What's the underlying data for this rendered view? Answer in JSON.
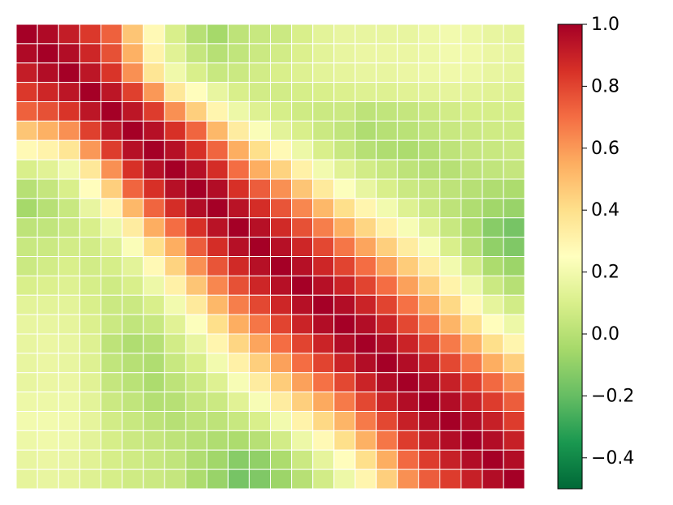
{
  "chart_data": {
    "type": "heatmap",
    "title": "",
    "xlabel": "",
    "ylabel": "",
    "colormap": "RdYlGn_r",
    "vmin": -0.5,
    "vmax": 1.0,
    "colorbar_ticks": [
      {
        "value": 1.0,
        "label": "1.0"
      },
      {
        "value": 0.8,
        "label": "0.8"
      },
      {
        "value": 0.6,
        "label": "0.6"
      },
      {
        "value": 0.4,
        "label": "0.4"
      },
      {
        "value": 0.2,
        "label": "0.2"
      },
      {
        "value": 0.0,
        "label": "0.0"
      },
      {
        "value": -0.2,
        "label": "−0.2"
      },
      {
        "value": -0.4,
        "label": "−0.4"
      }
    ],
    "rows": 24,
    "cols": 24,
    "matrix": [
      [
        1.0,
        0.97,
        0.91,
        0.83,
        0.73,
        0.48,
        0.28,
        0.1,
        0.0,
        -0.05,
        0.02,
        0.05,
        0.06,
        0.1,
        0.14,
        0.16,
        0.16,
        0.16,
        0.16,
        0.18,
        0.2,
        0.18,
        0.16,
        0.15
      ],
      [
        0.97,
        1.0,
        0.96,
        0.88,
        0.77,
        0.54,
        0.31,
        0.13,
        0.04,
        0.0,
        0.03,
        0.06,
        0.08,
        0.11,
        0.14,
        0.16,
        0.17,
        0.17,
        0.17,
        0.18,
        0.2,
        0.19,
        0.17,
        0.16
      ],
      [
        0.91,
        0.96,
        1.0,
        0.93,
        0.84,
        0.62,
        0.37,
        0.19,
        0.1,
        0.05,
        0.06,
        0.08,
        0.1,
        0.12,
        0.14,
        0.15,
        0.16,
        0.16,
        0.17,
        0.18,
        0.19,
        0.18,
        0.16,
        0.15
      ],
      [
        0.83,
        0.88,
        0.93,
        1.0,
        0.93,
        0.81,
        0.6,
        0.36,
        0.26,
        0.16,
        0.1,
        0.08,
        0.08,
        0.09,
        0.1,
        0.11,
        0.12,
        0.12,
        0.13,
        0.14,
        0.15,
        0.14,
        0.13,
        0.12
      ],
      [
        0.73,
        0.77,
        0.84,
        0.93,
        1.0,
        0.93,
        0.82,
        0.62,
        0.45,
        0.3,
        0.18,
        0.12,
        0.09,
        0.07,
        0.06,
        0.06,
        0.02,
        0.03,
        0.04,
        0.06,
        0.08,
        0.09,
        0.09,
        0.09
      ],
      [
        0.48,
        0.54,
        0.62,
        0.81,
        0.93,
        1.0,
        0.95,
        0.85,
        0.72,
        0.52,
        0.34,
        0.23,
        0.14,
        0.1,
        0.06,
        0.03,
        -0.02,
        0.0,
        0.01,
        0.03,
        0.05,
        0.06,
        0.07,
        0.07
      ],
      [
        0.28,
        0.31,
        0.37,
        0.6,
        0.82,
        0.95,
        1.0,
        0.95,
        0.85,
        0.72,
        0.55,
        0.4,
        0.28,
        0.18,
        0.1,
        0.05,
        0.0,
        -0.02,
        -0.03,
        -0.01,
        0.02,
        0.04,
        0.05,
        0.06
      ],
      [
        0.1,
        0.13,
        0.19,
        0.36,
        0.62,
        0.85,
        0.95,
        1.0,
        0.95,
        0.86,
        0.7,
        0.55,
        0.44,
        0.32,
        0.2,
        0.13,
        0.08,
        0.05,
        0.02,
        0.0,
        0.0,
        0.02,
        0.03,
        0.04
      ],
      [
        0.0,
        0.04,
        0.1,
        0.26,
        0.45,
        0.72,
        0.85,
        0.95,
        1.0,
        0.96,
        0.85,
        0.74,
        0.62,
        0.48,
        0.35,
        0.24,
        0.16,
        0.1,
        0.06,
        0.04,
        0.02,
        0.0,
        -0.02,
        -0.03
      ],
      [
        -0.05,
        0.0,
        0.05,
        0.16,
        0.3,
        0.52,
        0.72,
        0.86,
        0.96,
        1.0,
        0.94,
        0.86,
        0.76,
        0.64,
        0.52,
        0.4,
        0.3,
        0.2,
        0.12,
        0.06,
        0.02,
        -0.02,
        -0.06,
        -0.08
      ],
      [
        0.02,
        0.03,
        0.06,
        0.1,
        0.18,
        0.34,
        0.55,
        0.7,
        0.85,
        0.94,
        1.0,
        0.95,
        0.87,
        0.77,
        0.66,
        0.55,
        0.43,
        0.32,
        0.22,
        0.13,
        0.05,
        -0.03,
        -0.12,
        -0.16
      ],
      [
        0.05,
        0.06,
        0.08,
        0.08,
        0.12,
        0.23,
        0.4,
        0.55,
        0.74,
        0.86,
        0.95,
        1.0,
        0.95,
        0.88,
        0.79,
        0.68,
        0.57,
        0.45,
        0.34,
        0.22,
        0.1,
        0.0,
        -0.1,
        -0.14
      ],
      [
        0.06,
        0.08,
        0.1,
        0.08,
        0.09,
        0.14,
        0.28,
        0.44,
        0.62,
        0.76,
        0.87,
        0.95,
        1.0,
        0.95,
        0.88,
        0.8,
        0.7,
        0.58,
        0.46,
        0.34,
        0.2,
        0.08,
        -0.03,
        -0.07
      ],
      [
        0.1,
        0.11,
        0.12,
        0.09,
        0.07,
        0.1,
        0.18,
        0.32,
        0.48,
        0.64,
        0.77,
        0.88,
        0.95,
        1.0,
        0.95,
        0.89,
        0.8,
        0.7,
        0.58,
        0.45,
        0.31,
        0.18,
        0.06,
        0.0
      ],
      [
        0.14,
        0.14,
        0.14,
        0.1,
        0.06,
        0.06,
        0.1,
        0.2,
        0.35,
        0.52,
        0.66,
        0.79,
        0.88,
        0.95,
        1.0,
        0.96,
        0.89,
        0.8,
        0.69,
        0.56,
        0.42,
        0.28,
        0.15,
        0.08
      ],
      [
        0.16,
        0.16,
        0.15,
        0.11,
        0.06,
        0.03,
        0.05,
        0.13,
        0.24,
        0.4,
        0.55,
        0.68,
        0.8,
        0.89,
        0.96,
        1.0,
        0.96,
        0.89,
        0.79,
        0.67,
        0.53,
        0.4,
        0.26,
        0.18
      ],
      [
        0.16,
        0.17,
        0.16,
        0.12,
        0.02,
        -0.02,
        0.0,
        0.08,
        0.16,
        0.3,
        0.43,
        0.57,
        0.7,
        0.8,
        0.89,
        0.96,
        1.0,
        0.96,
        0.89,
        0.79,
        0.67,
        0.54,
        0.4,
        0.3
      ],
      [
        0.16,
        0.17,
        0.16,
        0.12,
        0.03,
        0.0,
        -0.02,
        0.05,
        0.1,
        0.2,
        0.32,
        0.45,
        0.58,
        0.7,
        0.8,
        0.89,
        0.96,
        1.0,
        0.96,
        0.89,
        0.79,
        0.68,
        0.55,
        0.45
      ],
      [
        0.16,
        0.17,
        0.17,
        0.13,
        0.04,
        0.01,
        -0.03,
        0.02,
        0.06,
        0.12,
        0.22,
        0.34,
        0.46,
        0.58,
        0.69,
        0.79,
        0.89,
        0.96,
        1.0,
        0.96,
        0.9,
        0.82,
        0.71,
        0.62
      ],
      [
        0.18,
        0.18,
        0.18,
        0.14,
        0.06,
        0.03,
        -0.01,
        0.0,
        0.04,
        0.06,
        0.13,
        0.22,
        0.34,
        0.45,
        0.56,
        0.67,
        0.79,
        0.89,
        0.96,
        1.0,
        0.96,
        0.9,
        0.82,
        0.74
      ],
      [
        0.2,
        0.2,
        0.19,
        0.15,
        0.08,
        0.05,
        0.02,
        0.0,
        0.02,
        0.02,
        0.05,
        0.1,
        0.2,
        0.31,
        0.42,
        0.53,
        0.67,
        0.79,
        0.9,
        0.96,
        1.0,
        0.96,
        0.9,
        0.82
      ],
      [
        0.18,
        0.19,
        0.18,
        0.14,
        0.09,
        0.06,
        0.04,
        0.02,
        0.0,
        -0.02,
        -0.03,
        0.0,
        0.08,
        0.18,
        0.28,
        0.4,
        0.54,
        0.68,
        0.82,
        0.9,
        0.96,
        1.0,
        0.96,
        0.9
      ],
      [
        0.16,
        0.17,
        0.16,
        0.13,
        0.09,
        0.07,
        0.05,
        0.03,
        -0.02,
        -0.06,
        -0.12,
        -0.1,
        -0.03,
        0.06,
        0.15,
        0.26,
        0.4,
        0.55,
        0.71,
        0.82,
        0.9,
        0.96,
        1.0,
        0.96
      ],
      [
        0.15,
        0.16,
        0.15,
        0.12,
        0.09,
        0.07,
        0.06,
        0.04,
        -0.03,
        -0.08,
        -0.16,
        -0.14,
        -0.07,
        0.0,
        0.08,
        0.18,
        0.3,
        0.45,
        0.62,
        0.74,
        0.82,
        0.9,
        0.96,
        1.0
      ]
    ]
  }
}
